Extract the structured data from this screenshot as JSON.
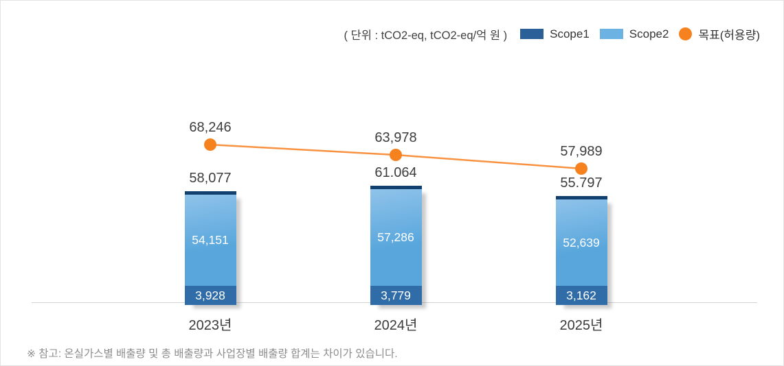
{
  "page": {
    "note": "※ 참고: 온실가스별 배출량 및 총 배출량과 사업장별 배출량 합계는 차이가 있습니다."
  },
  "legend": {
    "unit_label": "( 단위 : tCO2-eq, tCO2-eq/억 원 )",
    "items": [
      {
        "label": "Scope1",
        "color": "#2b5f97",
        "marker": "square"
      },
      {
        "label": "Scope2",
        "color": "#6cb2e2",
        "marker": "square"
      },
      {
        "label": "목표(허용량)",
        "color": "#f6821f",
        "marker": "circle"
      }
    ]
  },
  "chart_data": {
    "type": "bar",
    "subtype": "stacked-bar-with-target-line",
    "title": "",
    "unit": "( 단위 : tCO2-eq, tCO2-eq/억 원 )",
    "categories": [
      "2023년",
      "2024년",
      "2025년"
    ],
    "series": [
      {
        "name": "Scope1",
        "render": "bar-bottom",
        "color": "#2f6ca8",
        "values": [
          3928,
          3779,
          3162
        ],
        "labels": [
          "3,928",
          "3,779",
          "3,162"
        ]
      },
      {
        "name": "Scope2",
        "render": "bar-top",
        "color": "#5aa7dd",
        "values": [
          54151,
          57286,
          52639
        ],
        "labels": [
          "54,151",
          "57,286",
          "52,639"
        ]
      },
      {
        "name": "목표(허용량)",
        "render": "line",
        "color": "#f6821f",
        "values": [
          68246,
          63978,
          57989
        ],
        "labels": [
          "68,246",
          "63,978",
          "57,989"
        ]
      }
    ],
    "totals": {
      "values": [
        58077,
        61064,
        55797
      ],
      "labels": [
        "58,077",
        "61.064",
        "55.797"
      ]
    },
    "ylim": [
      0,
      75000
    ],
    "grid": false,
    "legend_position": "top-right"
  }
}
